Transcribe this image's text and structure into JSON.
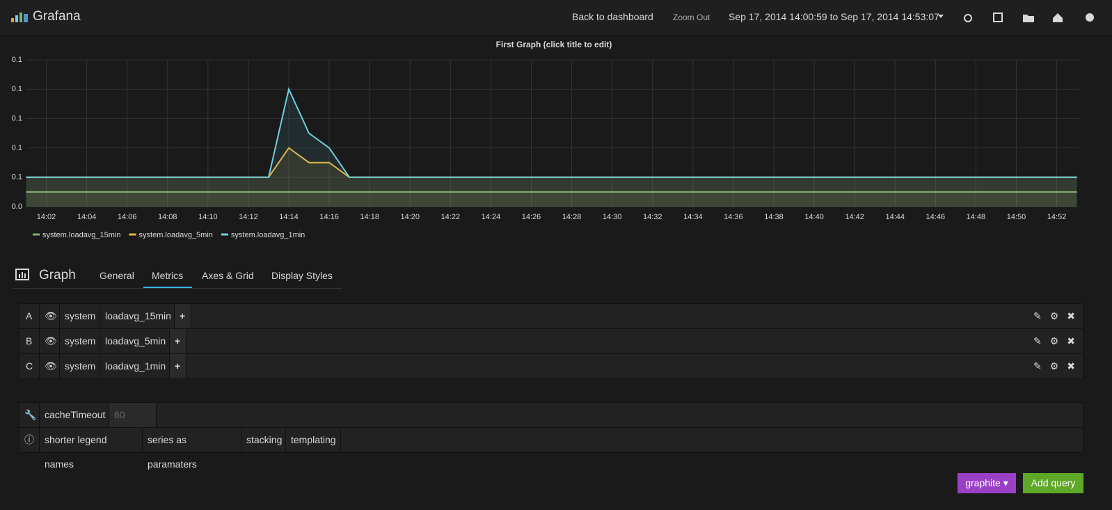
{
  "header": {
    "brand": "Grafana",
    "back": "Back to dashboard",
    "zoom_out": "Zoom Out",
    "time_range": "Sep 17, 2014 14:00:59 to Sep 17, 2014 14:53:07"
  },
  "chart_data": {
    "type": "line",
    "title": "First Graph (click title to edit)",
    "x": [
      "14:01",
      "14:13",
      "14:14",
      "14:15",
      "14:16",
      "14:17",
      "14:53"
    ],
    "series": [
      {
        "name": "system.loadavg_15min",
        "color": "#7eb26d",
        "values": [
          0.05,
          0.05,
          0.05,
          0.05,
          0.05,
          0.05,
          0.05
        ]
      },
      {
        "name": "system.loadavg_5min",
        "color": "#eab839",
        "values": [
          0.06,
          0.06,
          0.08,
          0.07,
          0.07,
          0.06,
          0.06
        ]
      },
      {
        "name": "system.loadavg_1min",
        "color": "#6ed0e0",
        "values": [
          0.06,
          0.06,
          0.12,
          0.09,
          0.08,
          0.06,
          0.06
        ]
      }
    ],
    "xlim": [
      "14:00:59",
      "14:53:07"
    ],
    "xticks": [
      "14:02",
      "14:04",
      "14:06",
      "14:08",
      "14:10",
      "14:12",
      "14:14",
      "14:16",
      "14:18",
      "14:20",
      "14:22",
      "14:24",
      "14:26",
      "14:28",
      "14:30",
      "14:32",
      "14:34",
      "14:36",
      "14:38",
      "14:40",
      "14:42",
      "14:44",
      "14:46",
      "14:48",
      "14:50",
      "14:52"
    ],
    "ylim": [
      0.04,
      0.14
    ],
    "yticks": [
      {
        "value": 0.04,
        "label": "0.0"
      },
      {
        "value": 0.06,
        "label": "0.1"
      },
      {
        "value": 0.08,
        "label": "0.1"
      },
      {
        "value": 0.1,
        "label": "0.1"
      },
      {
        "value": 0.12,
        "label": "0.1"
      },
      {
        "value": 0.14,
        "label": "0.1"
      }
    ],
    "grid": true,
    "fill": true
  },
  "editor": {
    "title": "Graph",
    "tabs": [
      "General",
      "Metrics",
      "Axes & Grid",
      "Display Styles"
    ],
    "targets": [
      {
        "ref": "A",
        "segments": [
          "system",
          "loadavg_15min"
        ]
      },
      {
        "ref": "B",
        "segments": [
          "system",
          "loadavg_5min"
        ]
      },
      {
        "ref": "C",
        "segments": [
          "system",
          "loadavg_1min"
        ]
      }
    ],
    "cache_timeout_label": "cacheTimeout",
    "cache_timeout_placeholder": "60",
    "help": [
      "shorter legend names",
      "series as paramaters",
      "stacking",
      "templating"
    ],
    "datasource": "graphite",
    "add_query": "Add query"
  }
}
